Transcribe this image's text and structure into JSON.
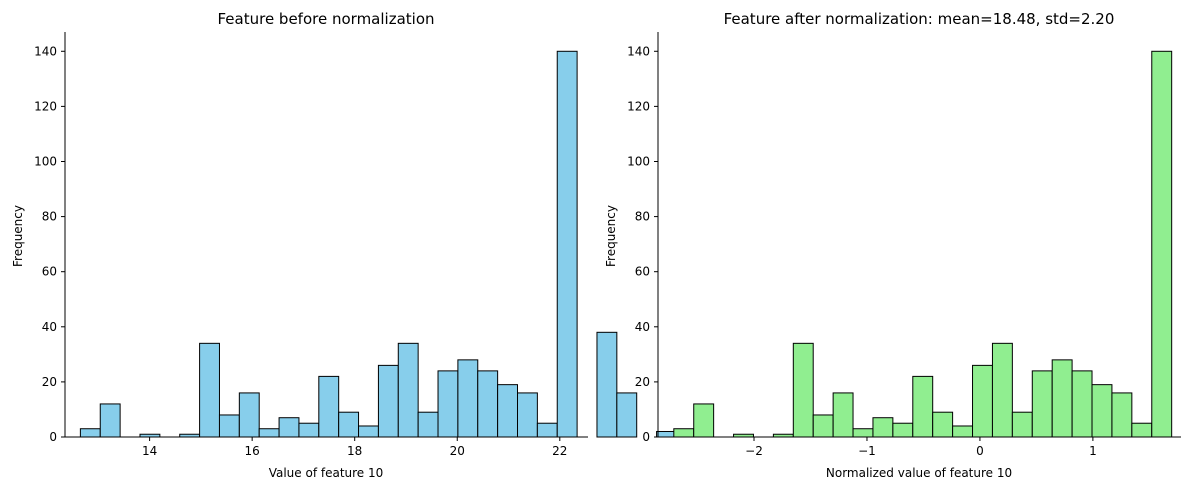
{
  "chart_data": [
    {
      "type": "bar",
      "title": "Feature before normalization",
      "xlabel": "Value of feature 10",
      "ylabel": "Frequency",
      "xlim": [
        12.35,
        22.55
      ],
      "ylim": [
        0,
        147
      ],
      "xticks": [
        "14",
        "16",
        "18",
        "20",
        "22"
      ],
      "xtick_values": [
        14,
        16,
        18,
        20,
        22
      ],
      "yticks": [
        "0",
        "20",
        "40",
        "60",
        "80",
        "100",
        "120",
        "140"
      ],
      "ytick_values": [
        0,
        20,
        40,
        60,
        80,
        100,
        120,
        140
      ],
      "bin_start": 12.65,
      "bin_width": 0.3875,
      "values": [
        3,
        12,
        0,
        1,
        0,
        1,
        34,
        8,
        16,
        3,
        7,
        5,
        22,
        9,
        4,
        26,
        34,
        9,
        24,
        28,
        24,
        19,
        16,
        5,
        140,
        0,
        38,
        16,
        0,
        2
      ],
      "color": "#87ceeb",
      "edgecolor": "#000000"
    },
    {
      "type": "bar",
      "title": "Feature after normalization: mean=18.48, std=2.20",
      "xlabel": "Normalized value of feature 10",
      "ylabel": "Frequency",
      "xlim": [
        -2.85,
        1.78
      ],
      "ylim": [
        0,
        147
      ],
      "xticks": [
        "−2",
        "−1",
        "0",
        "1"
      ],
      "xtick_values": [
        -2,
        -1,
        0,
        1
      ],
      "yticks": [
        "0",
        "20",
        "40",
        "60",
        "80",
        "100",
        "120",
        "140"
      ],
      "ytick_values": [
        0,
        20,
        40,
        60,
        80,
        100,
        120,
        140
      ],
      "bin_start": -2.71,
      "bin_width": 0.1763,
      "values": [
        3,
        12,
        0,
        1,
        0,
        1,
        34,
        8,
        16,
        3,
        7,
        5,
        22,
        9,
        4,
        26,
        34,
        9,
        24,
        28,
        24,
        19,
        16,
        5,
        140,
        0,
        38,
        16,
        0,
        2
      ],
      "color": "#90ee90",
      "edgecolor": "#000000"
    }
  ]
}
